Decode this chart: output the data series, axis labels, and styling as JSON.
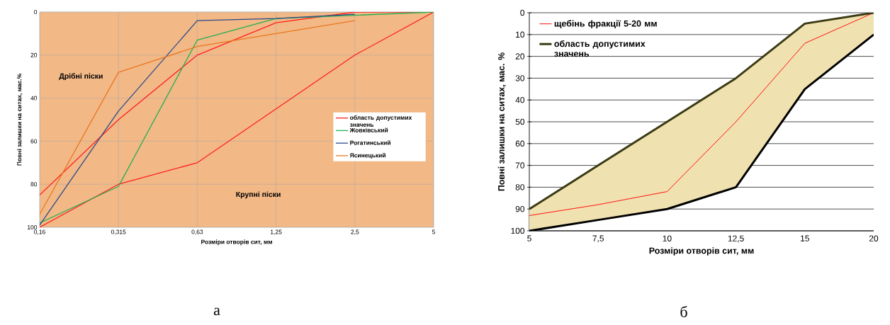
{
  "chart_data": [
    {
      "type": "line",
      "xlabel": "Розміри отворів сит, мм",
      "ylabel": "Повні залишки на ситах, мас.%",
      "categories": [
        "0,16",
        "0,315",
        "0,63",
        "1,25",
        "2,5",
        "5"
      ],
      "ylim": [
        100,
        0
      ],
      "yticks": [
        0,
        20,
        40,
        60,
        80,
        100
      ],
      "grid": true,
      "legend": "right",
      "series": [
        {
          "name": "область допустимих значень",
          "color": "#ff2020",
          "values": [
            85,
            50,
            20,
            5,
            0,
            0
          ]
        },
        {
          "color": "#ff2020",
          "values": [
            100,
            80,
            70,
            45,
            20,
            0
          ]
        },
        {
          "name": "Жовківський",
          "color": "#20b050",
          "values": [
            98,
            81,
            13,
            3,
            1.5,
            0
          ]
        },
        {
          "name": "Рогатинський",
          "color": "#2a4a8a",
          "values": [
            99,
            46,
            4,
            3,
            1,
            null
          ]
        },
        {
          "name": "Ясинецький",
          "color": "#e87820",
          "values": [
            94,
            28,
            16,
            10,
            4,
            null
          ]
        }
      ],
      "annotations": [
        "Дрібні піски",
        "Крупні піски",
        "а"
      ]
    },
    {
      "type": "line",
      "xlabel": "Розміри отворів сит,  мм",
      "ylabel": "Повні залишки на ситах, мас. %",
      "categories": [
        "5",
        "7,5",
        "10",
        "12,5",
        "15",
        "20"
      ],
      "ylim": [
        100,
        0
      ],
      "yticks": [
        0,
        10,
        20,
        30,
        40,
        50,
        60,
        70,
        80,
        90,
        100
      ],
      "grid": "y",
      "legend": "top left",
      "series": [
        {
          "name": "щебінь фракції  5-20 мм",
          "color": "#ff1010",
          "values": [
            93,
            88,
            82,
            50,
            14,
            0
          ]
        },
        {
          "name": "область  допустимих значень",
          "color": "#3a3a14",
          "values": [
            90,
            70,
            50,
            30,
            5,
            0
          ],
          "lower": [
            100,
            95,
            90,
            80,
            35,
            10
          ],
          "upper": [
            90,
            70,
            50,
            30,
            5,
            0
          ]
        },
        {
          "color": "#000000",
          "values": [
            100,
            95,
            90,
            80,
            35,
            10
          ]
        }
      ],
      "annotations": [
        "б"
      ]
    }
  ]
}
